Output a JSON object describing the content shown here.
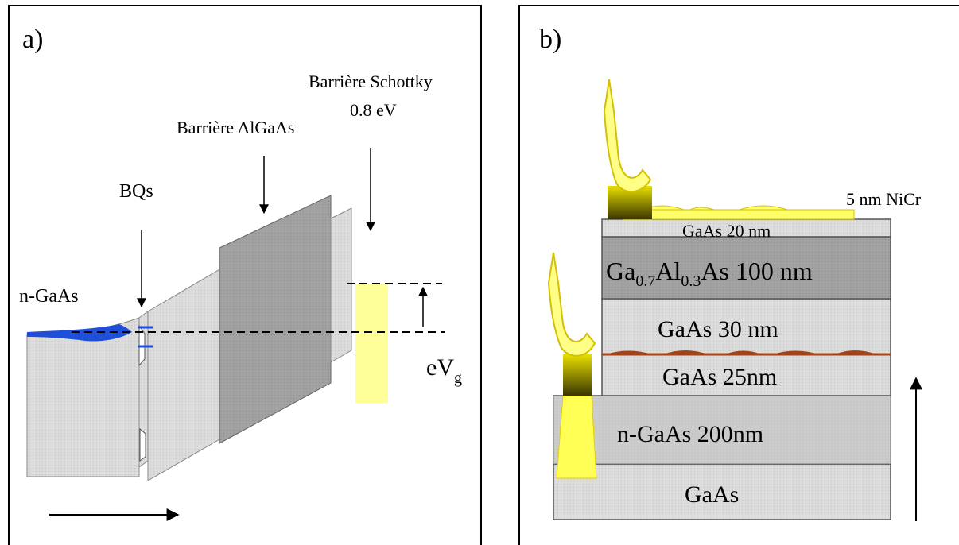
{
  "panel_a": {
    "label": "a)",
    "n_gaas": "n-GaAs",
    "bqs": "BQs",
    "barriere_algaas": "Barrière AlGaAs",
    "barriere_schottky": "Barrière Schottky",
    "schottky_value": "0.8 eV",
    "eVg_main": "eV",
    "eVg_sub": "g"
  },
  "panel_b": {
    "label": "b)",
    "nicr": "5 nm NiCr",
    "layer_gaas20": "GaAs 20 nm",
    "layer_algaas_ga": "Ga",
    "layer_algaas_ga_sub": "0.7",
    "layer_algaas_al": "Al",
    "layer_algaas_al_sub": "0.3",
    "layer_algaas_rest": "As 100 nm",
    "layer_gaas30": "GaAs 30 nm",
    "layer_gaas25": "GaAs 25nm",
    "layer_ngaas200": "n-GaAs 200nm",
    "layer_substrate": "GaAs"
  },
  "colors": {
    "light_gray": "#d9d9d9",
    "dark_gray": "#9e9e9e",
    "yellow": "#ffff99",
    "gold": "#f2e600",
    "blue": "#1f4fd8",
    "dots": "#a0441a"
  }
}
